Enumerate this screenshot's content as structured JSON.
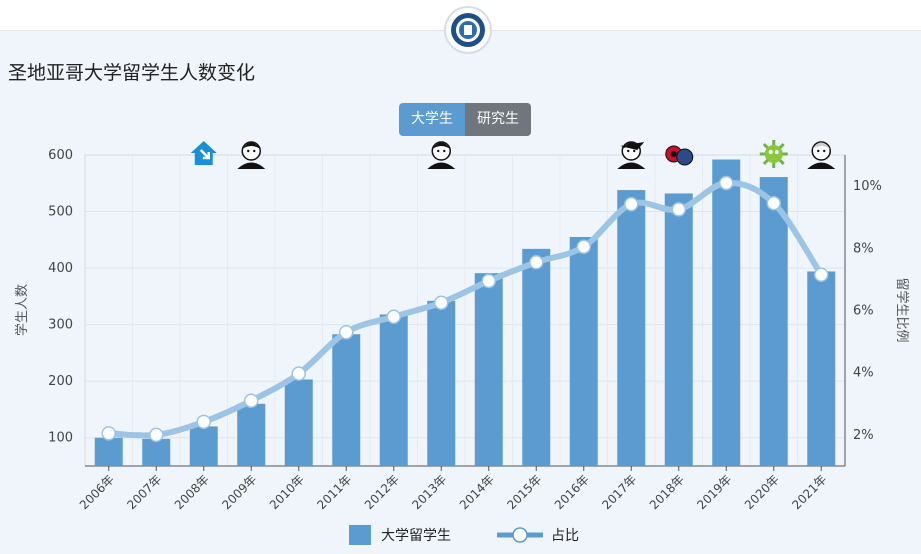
{
  "page": {
    "title": "圣地亚哥大学留学生人数变化"
  },
  "tabs": [
    {
      "label": "大学生",
      "active": true
    },
    {
      "label": "研究生",
      "active": false
    }
  ],
  "colors": {
    "bar": "#5b9bd0",
    "line": "#9cc4e4",
    "accent_tab": "#5b9bd0",
    "inactive_tab": "#6f767d"
  },
  "chart_data": {
    "type": "bar",
    "categories": [
      "2006年",
      "2007年",
      "2008年",
      "2009年",
      "2010年",
      "2011年",
      "2012年",
      "2013年",
      "2014年",
      "2015年",
      "2016年",
      "2017年",
      "2018年",
      "2019年",
      "2020年",
      "2021年"
    ],
    "ylabel": "学生人数",
    "y2label": "留学生比例",
    "ylim": [
      50,
      600
    ],
    "yticks": [
      100,
      200,
      300,
      400,
      500,
      600
    ],
    "y2lim": [
      1,
      11
    ],
    "y2ticks": [
      2,
      4,
      6,
      8,
      10
    ],
    "y2tick_labels": [
      "2%",
      "4%",
      "6%",
      "8%",
      "10%"
    ],
    "grid": true,
    "series": [
      {
        "name": "大学留学生",
        "type": "bar",
        "axis": "left",
        "values": [
          100,
          98,
          120,
          160,
          203,
          283,
          318,
          342,
          391,
          434,
          455,
          538,
          532,
          592,
          561,
          394
        ]
      },
      {
        "name": "占比",
        "type": "line",
        "axis": "right",
        "values": [
          2.05,
          2.0,
          2.42,
          3.1,
          3.97,
          5.3,
          5.8,
          6.25,
          6.95,
          7.55,
          8.05,
          9.42,
          9.25,
          10.1,
          9.45,
          7.15
        ]
      }
    ],
    "annotations": [
      {
        "category": "2008年",
        "icon": "house-down-icon"
      },
      {
        "category": "2009年",
        "icon": "obama-portrait-icon"
      },
      {
        "category": "2013年",
        "icon": "obama-portrait-icon"
      },
      {
        "category": "2017年",
        "icon": "trump-portrait-icon"
      },
      {
        "category": "2018年",
        "icon": "trade-war-icon"
      },
      {
        "category": "2020年",
        "icon": "virus-icon"
      },
      {
        "category": "2021年",
        "icon": "biden-portrait-icon"
      }
    ],
    "legend_position": "bottom"
  },
  "legend": {
    "bar_label": "大学留学生",
    "line_label": "占比"
  }
}
